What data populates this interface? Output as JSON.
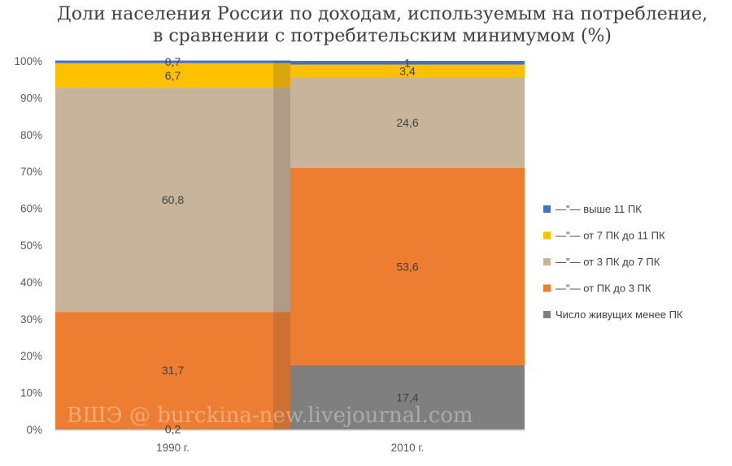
{
  "chart_data": {
    "type": "bar",
    "stacked": true,
    "title_lines": [
      "Доли населения России по доходам, используемым на потребление,",
      "в сравнении с потребительским минимумом (%)"
    ],
    "categories": [
      "1990 г.",
      "2010 г."
    ],
    "ylim": [
      0,
      100
    ],
    "y_ticks": [
      "0%",
      "10%",
      "20%",
      "30%",
      "40%",
      "50%",
      "60%",
      "70%",
      "80%",
      "90%",
      "100%"
    ],
    "series": [
      {
        "name": "Число живущих менее ПК",
        "color": "#7f7f7f",
        "values": [
          0.2,
          17.4
        ],
        "labels": [
          "0,2",
          "17,4"
        ]
      },
      {
        "name": "—\"— от ПК до 3 ПК",
        "color": "#ed7d31",
        "values": [
          31.7,
          53.6
        ],
        "labels": [
          "31,7",
          "53,6"
        ]
      },
      {
        "name": "—\"— от 3 ПК до 7 ПК",
        "color": "#c8b49b",
        "values": [
          60.8,
          24.6
        ],
        "labels": [
          "60,8",
          "24,6"
        ]
      },
      {
        "name": "—\"— от 7 ПК до 11 ПК",
        "color": "#ffc000",
        "values": [
          6.7,
          3.4
        ],
        "labels": [
          "6,7",
          "3,4"
        ]
      },
      {
        "name": "—\"— выше 11 ПК",
        "color": "#4472c4",
        "values": [
          0.7,
          1
        ],
        "labels": [
          "0,7",
          "1"
        ]
      }
    ],
    "legend_order": [
      4,
      3,
      2,
      1,
      0
    ],
    "legend_position": "right",
    "grid": false
  },
  "watermark": "ВШЭ @ burckina-new.livejournal.com"
}
